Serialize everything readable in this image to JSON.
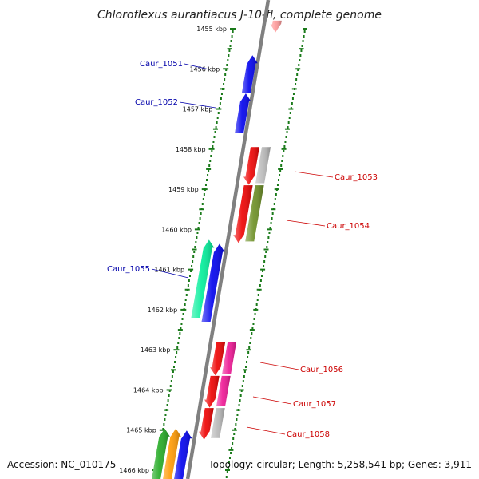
{
  "title": "Chloroflexus aurantiacus J-10-fl, complete genome",
  "accession": "Accession: NC_010175",
  "topology": "Topology: circular; Length: 5,258,541 bp; Genes: 3,911",
  "colors": {
    "backbone": "#808080",
    "forward_label": "#0000aa",
    "reverse_label": "#cc0000",
    "tick_dots": "#1a7a1a"
  },
  "kbp_ticks": [
    {
      "label": "1455 kbp",
      "pos": 1455
    },
    {
      "label": "1456 kbp",
      "pos": 1456
    },
    {
      "label": "1457 kbp",
      "pos": 1457
    },
    {
      "label": "1458 kbp",
      "pos": 1458
    },
    {
      "label": "1459 kbp",
      "pos": 1459
    },
    {
      "label": "1460 kbp",
      "pos": 1460
    },
    {
      "label": "1461 kbp",
      "pos": 1461
    },
    {
      "label": "1462 kbp",
      "pos": 1462
    },
    {
      "label": "1463 kbp",
      "pos": 1463
    },
    {
      "label": "1464 kbp",
      "pos": 1464
    },
    {
      "label": "1465 kbp",
      "pos": 1465
    },
    {
      "label": "1466 kbp",
      "pos": 1466
    }
  ],
  "genes": [
    {
      "id": "top-partial",
      "label": "",
      "strand": "reverse",
      "start": 1454.8,
      "end": 1455.05,
      "color": "#ff9999",
      "lane": 1
    },
    {
      "id": "caur_1051",
      "label": "Caur_1051",
      "strand": "forward",
      "start": 1455.7,
      "end": 1456.6,
      "color": "#0000ee",
      "lane": 1
    },
    {
      "id": "caur_1052",
      "label": "Caur_1052",
      "strand": "forward",
      "start": 1456.65,
      "end": 1457.6,
      "color": "#0000ee",
      "lane": 1
    },
    {
      "id": "caur_1053",
      "label": "Caur_1053",
      "strand": "reverse",
      "start": 1457.95,
      "end": 1458.85,
      "color": "#ee0000",
      "lane": 1,
      "paired_color": "#b8b8b8"
    },
    {
      "id": "caur_1054",
      "label": "Caur_1054",
      "strand": "reverse",
      "start": 1458.9,
      "end": 1460.3,
      "color": "#ee0000",
      "lane": 1,
      "paired_color": "#6b8e23"
    },
    {
      "id": "caur_1055",
      "label": "Caur_1055",
      "strand": "forward",
      "start": 1460.3,
      "end": 1462.2,
      "color": "#00ee99",
      "lane": 2
    },
    {
      "id": "blue-1461",
      "label": "",
      "strand": "forward",
      "start": 1460.4,
      "end": 1462.3,
      "color": "#0000ee",
      "lane": 1
    },
    {
      "id": "caur_1056",
      "label": "Caur_1056",
      "strand": "reverse",
      "start": 1462.8,
      "end": 1463.6,
      "color": "#ee0000",
      "lane": 1,
      "paired_color": "#ee1493"
    },
    {
      "id": "caur_1057",
      "label": "Caur_1057",
      "strand": "reverse",
      "start": 1463.65,
      "end": 1464.4,
      "color": "#ee0000",
      "lane": 1,
      "paired_color": "#ee1493"
    },
    {
      "id": "caur_1058",
      "label": "Caur_1058",
      "strand": "reverse",
      "start": 1464.45,
      "end": 1465.2,
      "color": "#ee0000",
      "lane": 1,
      "paired_color": "#b8b8b8"
    },
    {
      "id": "green-bottom",
      "label": "",
      "strand": "forward",
      "start": 1465.0,
      "end": 1466.4,
      "color": "#22aa22",
      "lane": 3
    },
    {
      "id": "orange-bottom",
      "label": "",
      "strand": "forward",
      "start": 1465.0,
      "end": 1466.4,
      "color": "#ff9900",
      "lane": 2
    },
    {
      "id": "blue-bottom",
      "label": "",
      "strand": "forward",
      "start": 1465.05,
      "end": 1466.4,
      "color": "#0000ee",
      "lane": 1
    }
  ]
}
